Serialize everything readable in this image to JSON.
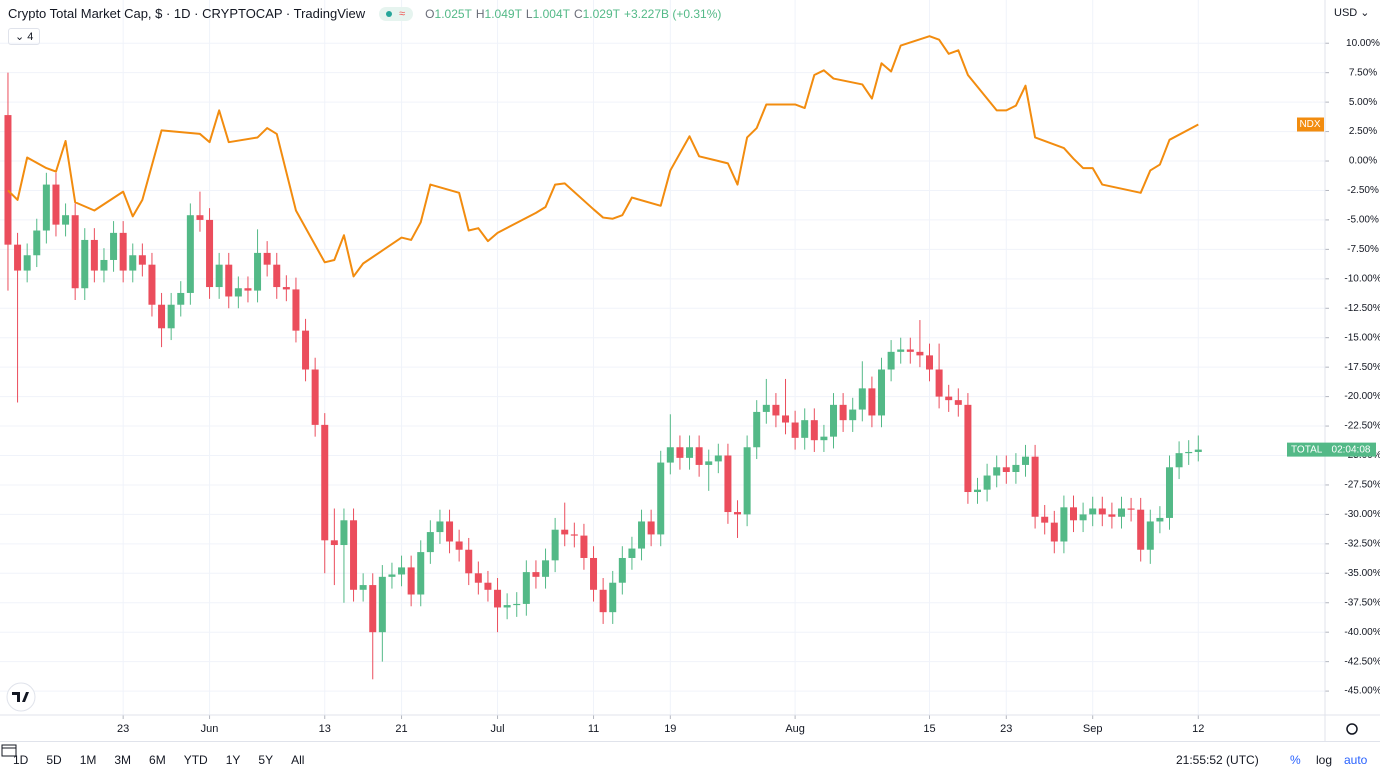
{
  "header": {
    "title": "Crypto Total Market Cap, $ · 1D · CRYPTOCAP · TradingView",
    "ohlc": [
      {
        "key": "O",
        "value": "1.025T"
      },
      {
        "key": "H",
        "value": "1.049T"
      },
      {
        "key": "L",
        "value": "1.004T"
      },
      {
        "key": "C",
        "value": "1.029T"
      }
    ],
    "change": "+3.227B (+0.31%)",
    "indicators": "4",
    "currency": "USD",
    "countdown": "02:04:08"
  },
  "toolbar": {
    "ranges": [
      "1D",
      "5D",
      "1M",
      "3M",
      "6M",
      "YTD",
      "1Y",
      "5Y",
      "All"
    ],
    "time": "21:55:52 (UTC)",
    "options": [
      "%",
      "log",
      "auto"
    ]
  },
  "chart_data": {
    "type": "candlestick",
    "title": "Crypto Total Market Cap, $ · 1D · CRYPTOCAP · TradingView",
    "grid": true,
    "ylim": [
      -47.03,
      13.67
    ],
    "yticks": [
      {
        "value": 10,
        "label": "10.00%"
      },
      {
        "value": 7.5,
        "label": "7.50%"
      },
      {
        "value": 5,
        "label": "5.00%"
      },
      {
        "value": 2.5,
        "label": "2.50%"
      },
      {
        "value": 0,
        "label": "0.00%"
      },
      {
        "value": -2.5,
        "label": "-2.50%"
      },
      {
        "value": -5,
        "label": "-5.00%"
      },
      {
        "value": -7.5,
        "label": "-7.50%"
      },
      {
        "value": -10,
        "label": "-10.00%"
      },
      {
        "value": -12.5,
        "label": "-12.50%"
      },
      {
        "value": -15,
        "label": "-15.00%"
      },
      {
        "value": -17.5,
        "label": "-17.50%"
      },
      {
        "value": -20,
        "label": "-20.00%"
      },
      {
        "value": -22.5,
        "label": "-22.50%"
      },
      {
        "value": -25,
        "label": "-25.00%"
      },
      {
        "value": -27.5,
        "label": "-27.50%"
      },
      {
        "value": -30,
        "label": "-30.00%"
      },
      {
        "value": -32.5,
        "label": "-32.50%"
      },
      {
        "value": -35,
        "label": "-35.00%"
      },
      {
        "value": -37.5,
        "label": "-37.50%"
      },
      {
        "value": -40,
        "label": "-40.00%"
      },
      {
        "value": -42.5,
        "label": "-42.50%"
      },
      {
        "value": -45,
        "label": "-45.00%"
      }
    ],
    "xlim": [
      -0.83,
      137.2
    ],
    "xticks": [
      {
        "value": 12,
        "label": "23"
      },
      {
        "value": 21,
        "label": "Jun"
      },
      {
        "value": 33,
        "label": "13"
      },
      {
        "value": 41,
        "label": "21"
      },
      {
        "value": 51,
        "label": "Jul"
      },
      {
        "value": 61,
        "label": "11"
      },
      {
        "value": 69,
        "label": "19"
      },
      {
        "value": 82,
        "label": "Aug"
      },
      {
        "value": 96,
        "label": "15"
      },
      {
        "value": 104,
        "label": "23"
      },
      {
        "value": 113,
        "label": "Sep"
      },
      {
        "value": 124,
        "label": "12"
      }
    ],
    "series": [
      {
        "name": "TOTAL",
        "type": "candlestick",
        "up_color": "#53b987",
        "down_color": "#eb4d5c",
        "x": [
          0,
          1,
          2,
          3,
          4,
          5,
          6,
          7,
          8,
          9,
          10,
          11,
          12,
          13,
          14,
          15,
          16,
          17,
          18,
          19,
          20,
          21,
          22,
          23,
          24,
          25,
          26,
          27,
          28,
          29,
          30,
          31,
          32,
          33,
          34,
          35,
          36,
          37,
          38,
          39,
          40,
          41,
          42,
          43,
          44,
          45,
          46,
          47,
          48,
          49,
          50,
          51,
          52,
          53,
          54,
          55,
          56,
          57,
          58,
          59,
          60,
          61,
          62,
          63,
          64,
          65,
          66,
          67,
          68,
          69,
          70,
          71,
          72,
          73,
          74,
          75,
          76,
          77,
          78,
          79,
          80,
          81,
          82,
          83,
          84,
          85,
          86,
          87,
          88,
          89,
          90,
          91,
          92,
          93,
          94,
          95,
          96,
          97,
          98,
          99,
          100,
          101,
          102,
          103,
          104,
          105,
          106,
          107,
          108,
          109,
          110,
          111,
          112,
          113,
          114,
          115,
          116,
          117,
          118,
          119,
          120,
          121,
          122,
          123,
          124
        ],
        "open": [
          3.9,
          -7.1,
          -9.3,
          -8.0,
          -5.9,
          -2.0,
          -5.4,
          -4.6,
          -10.8,
          -6.7,
          -9.3,
          -8.4,
          -6.1,
          -9.3,
          -8.0,
          -8.8,
          -12.2,
          -14.2,
          -12.2,
          -11.2,
          -4.6,
          -5.0,
          -10.7,
          -8.8,
          -11.5,
          -10.8,
          -11.0,
          -7.8,
          -8.8,
          -10.7,
          -10.9,
          -14.4,
          -17.7,
          -22.4,
          -32.2,
          -32.6,
          -30.5,
          -36.4,
          -36.0,
          -40.0,
          -35.3,
          -35.1,
          -34.5,
          -36.8,
          -33.2,
          -31.5,
          -30.6,
          -32.3,
          -33.0,
          -35.0,
          -35.8,
          -36.4,
          -37.9,
          -37.7,
          -37.6,
          -34.9,
          -35.3,
          -33.9,
          -31.3,
          -31.7,
          -31.8,
          -33.7,
          -36.4,
          -38.3,
          -35.8,
          -33.7,
          -32.9,
          -30.6,
          -31.7,
          -25.6,
          -24.3,
          -25.2,
          -24.3,
          -25.8,
          -25.5,
          -25.0,
          -29.8,
          -30.0,
          -24.3,
          -21.3,
          -20.7,
          -21.6,
          -22.2,
          -23.5,
          -22.0,
          -23.7,
          -23.4,
          -20.7,
          -22.0,
          -21.1,
          -19.3,
          -21.6,
          -17.7,
          -16.2,
          -16.0,
          -16.2,
          -16.5,
          -17.7,
          -20.0,
          -20.3,
          -20.7,
          -28.1,
          -27.9,
          -26.7,
          -26.0,
          -26.4,
          -25.8,
          -25.1,
          -30.2,
          -30.7,
          -32.3,
          -29.4,
          -30.5,
          -30.0,
          -29.5,
          -30.0,
          -30.2,
          -29.5,
          -29.6,
          -33.0,
          -30.6,
          -30.3,
          -26.0,
          -24.8,
          -24.7
        ],
        "high": [
          7.5,
          -6.1,
          -7.0,
          -4.9,
          -1.0,
          -1.0,
          -3.6,
          -3.6,
          -5.7,
          -5.7,
          -7.4,
          -5.1,
          -5.1,
          -7.0,
          -7.0,
          -7.8,
          -11.2,
          -11.2,
          -10.2,
          -3.6,
          -2.6,
          -4.0,
          -7.8,
          -7.8,
          -9.8,
          -9.8,
          -5.8,
          -6.8,
          -7.8,
          -9.7,
          -9.9,
          -13.4,
          -16.7,
          -21.4,
          -29.5,
          -29.5,
          -29.5,
          -35.0,
          -35.0,
          -34.3,
          -34.1,
          -33.5,
          -33.5,
          -32.2,
          -30.5,
          -29.6,
          -29.6,
          -31.3,
          -32.0,
          -34.0,
          -34.8,
          -35.4,
          -36.7,
          -36.6,
          -33.9,
          -33.9,
          -32.9,
          -30.3,
          -29.0,
          -30.7,
          -30.8,
          -32.7,
          -35.4,
          -34.8,
          -32.7,
          -31.9,
          -29.6,
          -29.6,
          -24.6,
          -21.5,
          -23.3,
          -23.3,
          -23.3,
          -24.5,
          -24.0,
          -24.0,
          -28.8,
          -23.3,
          -20.3,
          -18.5,
          -19.7,
          -18.5,
          -21.2,
          -21.0,
          -21.0,
          -22.4,
          -19.7,
          -19.7,
          -20.1,
          -17.0,
          -18.3,
          -16.7,
          -15.2,
          -15.0,
          -15.0,
          -13.5,
          -15.5,
          -15.5,
          -19.0,
          -19.3,
          -19.7,
          -26.9,
          -25.7,
          -25.0,
          -25.0,
          -24.8,
          -24.1,
          -24.1,
          -29.2,
          -29.7,
          -28.4,
          -28.4,
          -29.0,
          -28.5,
          -28.5,
          -29.0,
          -28.5,
          -28.6,
          -28.6,
          -29.6,
          -29.3,
          -25.0,
          -23.8,
          -23.7,
          -23.3
        ],
        "low": [
          -11.0,
          -20.5,
          -10.3,
          -9.0,
          -7.0,
          -6.4,
          -6.4,
          -11.8,
          -11.8,
          -10.3,
          -10.3,
          -9.4,
          -10.3,
          -10.3,
          -9.8,
          -13.2,
          -15.8,
          -15.2,
          -13.2,
          -12.2,
          -6.0,
          -11.7,
          -11.7,
          -12.5,
          -12.5,
          -12.0,
          -12.0,
          -9.8,
          -11.7,
          -11.9,
          -15.4,
          -18.7,
          -23.4,
          -35.0,
          -36.0,
          -37.5,
          -37.4,
          -37.4,
          -44.0,
          -42.5,
          -36.3,
          -36.1,
          -37.8,
          -37.8,
          -34.2,
          -32.5,
          -33.3,
          -34.0,
          -36.0,
          -36.8,
          -37.4,
          -40.0,
          -38.9,
          -38.7,
          -38.6,
          -36.3,
          -36.3,
          -34.9,
          -32.7,
          -32.8,
          -34.7,
          -37.4,
          -39.3,
          -39.3,
          -36.8,
          -34.7,
          -33.9,
          -32.7,
          -32.7,
          -26.6,
          -26.2,
          -26.2,
          -26.8,
          -28.0,
          -26.5,
          -30.8,
          -32.0,
          -31.0,
          -25.3,
          -22.3,
          -22.6,
          -23.2,
          -24.5,
          -24.5,
          -24.7,
          -24.7,
          -24.4,
          -23.0,
          -23.0,
          -22.1,
          -22.6,
          -22.6,
          -18.7,
          -17.2,
          -17.2,
          -17.5,
          -18.7,
          -21.0,
          -21.3,
          -21.7,
          -29.1,
          -29.1,
          -28.9,
          -27.7,
          -27.4,
          -27.4,
          -26.8,
          -31.2,
          -31.7,
          -33.3,
          -33.3,
          -31.5,
          -31.5,
          -31.0,
          -31.0,
          -31.2,
          -31.2,
          -30.6,
          -34.0,
          -34.2,
          -31.6,
          -31.3,
          -27.0,
          -25.8,
          -25.5
        ],
        "close": [
          -7.1,
          -9.3,
          -8.0,
          -5.9,
          -2.0,
          -5.4,
          -4.6,
          -10.8,
          -6.7,
          -9.3,
          -8.4,
          -6.1,
          -9.3,
          -8.0,
          -8.8,
          -12.2,
          -14.2,
          -12.2,
          -11.2,
          -4.6,
          -5.0,
          -10.7,
          -8.8,
          -11.5,
          -10.8,
          -11.0,
          -7.8,
          -8.8,
          -10.7,
          -10.9,
          -14.4,
          -17.7,
          -22.4,
          -32.2,
          -32.6,
          -30.5,
          -36.4,
          -36.0,
          -40.0,
          -35.3,
          -35.1,
          -34.5,
          -36.8,
          -33.2,
          -31.5,
          -30.6,
          -32.3,
          -33.0,
          -35.0,
          -35.8,
          -36.4,
          -37.9,
          -37.7,
          -37.6,
          -34.9,
          -35.3,
          -33.9,
          -31.3,
          -31.7,
          -31.8,
          -33.7,
          -36.4,
          -38.3,
          -35.8,
          -33.7,
          -32.9,
          -30.6,
          -31.7,
          -25.6,
          -24.3,
          -25.2,
          -24.3,
          -25.8,
          -25.5,
          -25.0,
          -29.8,
          -30.0,
          -24.3,
          -21.3,
          -20.7,
          -21.6,
          -22.2,
          -23.5,
          -22.0,
          -23.7,
          -23.4,
          -20.7,
          -22.0,
          -21.1,
          -19.3,
          -21.6,
          -17.7,
          -16.2,
          -16.0,
          -16.2,
          -16.5,
          -17.7,
          -20.0,
          -20.3,
          -20.7,
          -28.1,
          -27.9,
          -26.7,
          -26.0,
          -26.4,
          -25.8,
          -25.1,
          -30.2,
          -30.7,
          -32.3,
          -29.4,
          -30.5,
          -30.0,
          -29.5,
          -30.0,
          -30.2,
          -29.5,
          -29.6,
          -33.0,
          -30.6,
          -30.3,
          -26.0,
          -24.8,
          -24.7,
          -24.5
        ]
      },
      {
        "name": "NDX",
        "type": "line",
        "color": "#f28c0f",
        "x": [
          0,
          1,
          2,
          4,
          5,
          6,
          7,
          9,
          12,
          13,
          14,
          16,
          20,
          21,
          22,
          23,
          26,
          27,
          28,
          30,
          33,
          34,
          35,
          36,
          37,
          41,
          42,
          43,
          44,
          47,
          48,
          49,
          50,
          51,
          55,
          56,
          57,
          58,
          61,
          62,
          63,
          64,
          65,
          68,
          69,
          71,
          72,
          74,
          75,
          76,
          77,
          78,
          79,
          82,
          83,
          84,
          85,
          86,
          89,
          90,
          91,
          92,
          93,
          96,
          97,
          98,
          99,
          100,
          103,
          104,
          105,
          106,
          107,
          110,
          111,
          112,
          113,
          114,
          118,
          119,
          120,
          121,
          124
        ],
        "values": [
          -2.5,
          -3.3,
          0.3,
          -0.6,
          -0.9,
          1.7,
          -3.5,
          -4.2,
          -2.6,
          -4.7,
          -3.3,
          2.6,
          2.3,
          1.6,
          4.3,
          1.6,
          2.0,
          2.8,
          2.3,
          -4.2,
          -8.6,
          -8.4,
          -6.3,
          -9.8,
          -8.7,
          -6.5,
          -6.7,
          -5.2,
          -2.0,
          -2.7,
          -5.9,
          -5.7,
          -6.8,
          -6.1,
          -4.4,
          -3.9,
          -2.0,
          -1.9,
          -4.1,
          -4.8,
          -4.9,
          -4.6,
          -3.1,
          -3.8,
          -0.8,
          2.1,
          0.4,
          0.0,
          -0.2,
          -2.0,
          2.0,
          2.8,
          4.8,
          4.8,
          4.5,
          7.3,
          7.7,
          7.0,
          6.5,
          5.3,
          8.3,
          7.6,
          9.8,
          10.6,
          10.3,
          9.1,
          9.4,
          7.3,
          4.3,
          4.3,
          4.7,
          6.4,
          2.0,
          1.1,
          0.2,
          -0.6,
          -0.6,
          -2.0,
          -2.7,
          -0.8,
          -0.3,
          1.8,
          3.1
        ]
      }
    ]
  }
}
